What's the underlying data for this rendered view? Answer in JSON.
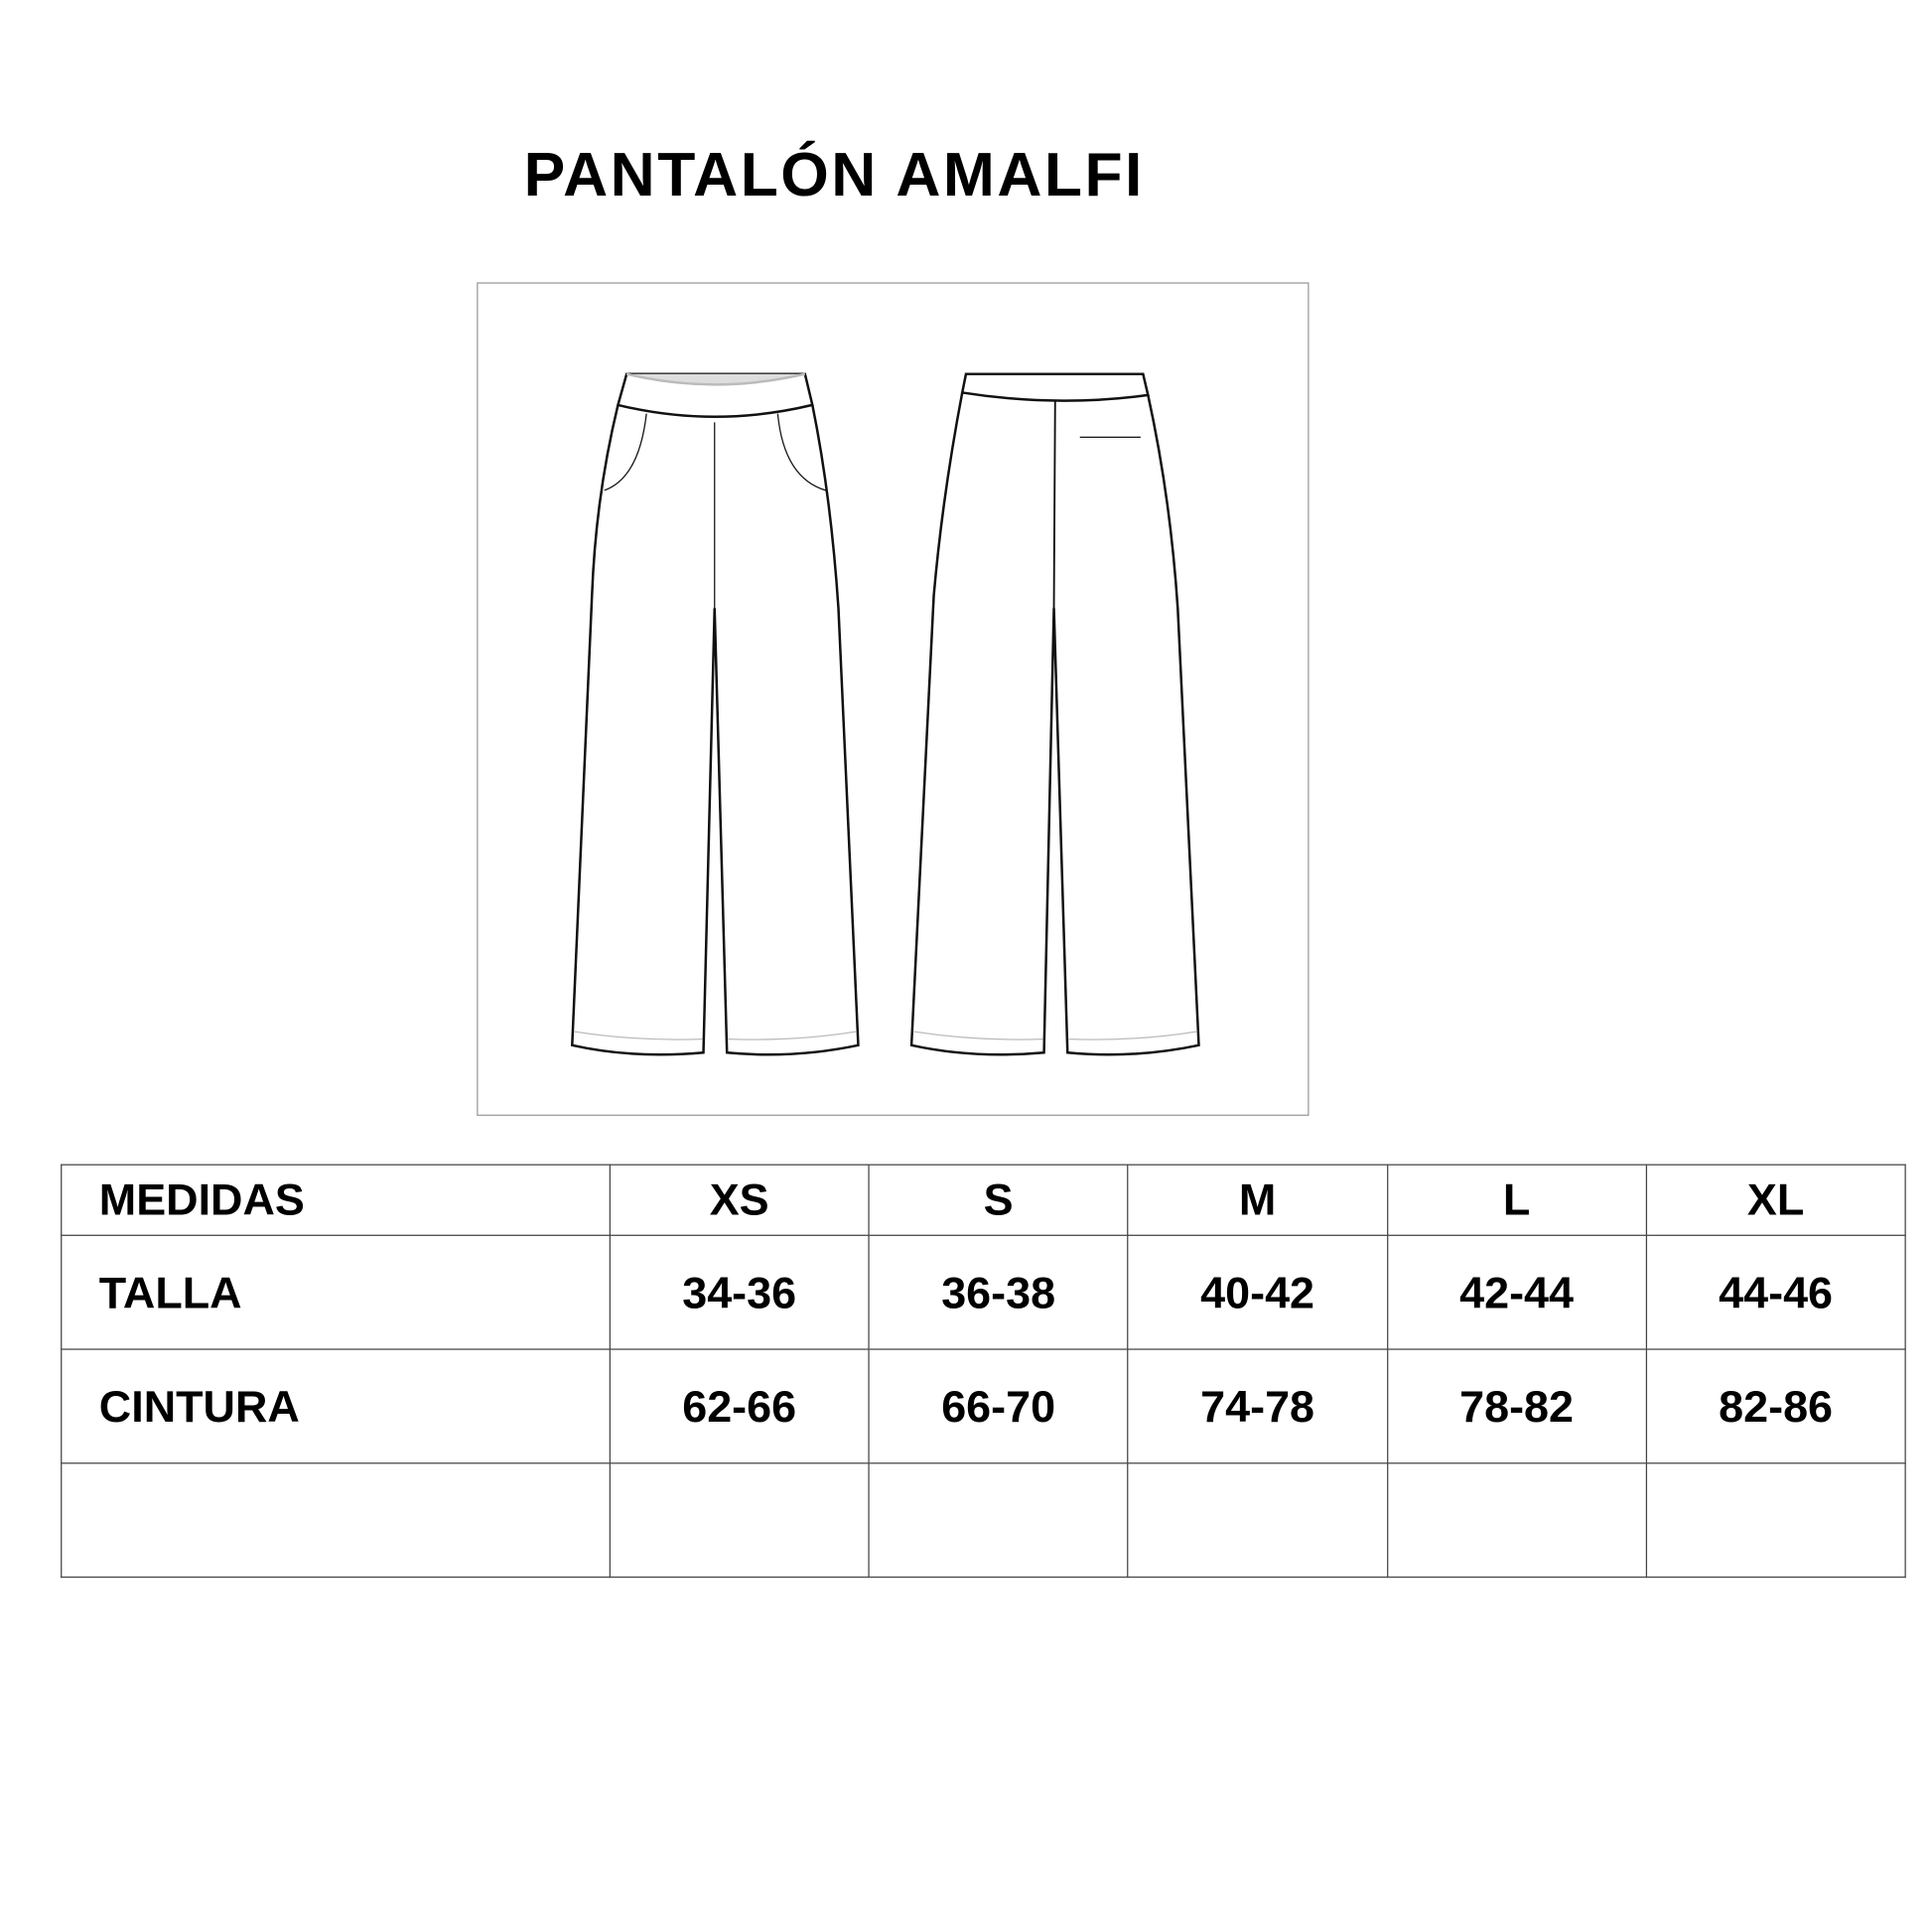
{
  "title": "PANTALÓN AMALFI",
  "table": {
    "header": [
      "MEDIDAS",
      "XS",
      "S",
      "M",
      "L",
      "XL"
    ],
    "rows": [
      {
        "label": "TALLA",
        "values": [
          "34-36",
          "36-38",
          "40-42",
          "42-44",
          "44-46"
        ]
      },
      {
        "label": "CINTURA",
        "values": [
          "62-66",
          "66-70",
          "74-78",
          "78-82",
          "82-86"
        ]
      },
      {
        "label": "",
        "values": [
          "",
          "",
          "",
          "",
          ""
        ]
      }
    ]
  }
}
